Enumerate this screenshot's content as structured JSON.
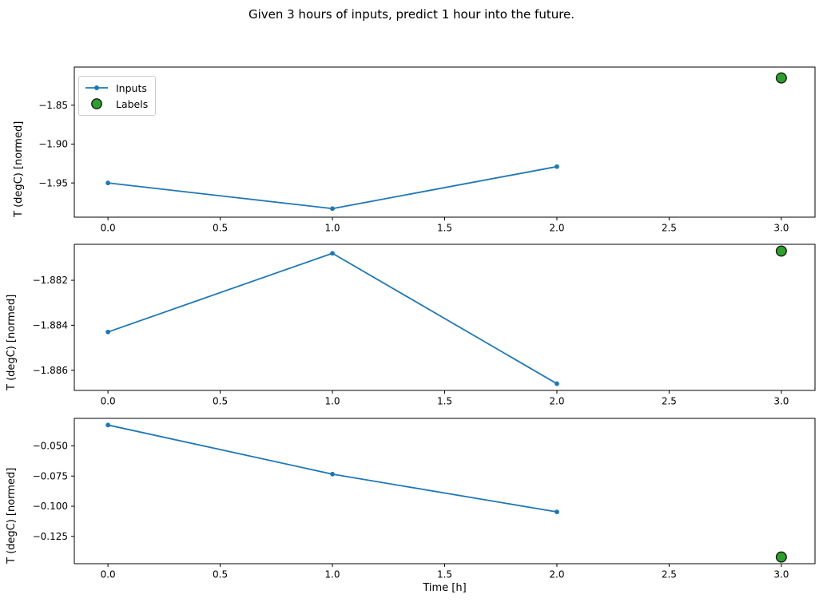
{
  "figure": {
    "title": "Given 3 hours of inputs, predict 1 hour into the future.",
    "xlabel": "Time [h]",
    "legend": {
      "items": [
        {
          "label": "Inputs",
          "marker": "line-with-dot"
        },
        {
          "label": "Labels",
          "marker": "filled-circle"
        }
      ]
    },
    "colors": {
      "line": "#1f77b4",
      "scatter_fill": "#2ca02c",
      "scatter_edge": "#1a1a1a",
      "spine": "#000000"
    }
  },
  "chart_data": [
    {
      "type": "line",
      "ylabel": "T (degC) [normed]",
      "x": [
        0,
        1,
        2
      ],
      "series": [
        {
          "name": "Inputs",
          "values": [
            -1.95,
            -1.983,
            -1.929
          ]
        }
      ],
      "label_point": {
        "name": "Labels",
        "x": 3,
        "y": -1.815
      },
      "xlim": [
        -0.15,
        3.15
      ],
      "ylim": [
        -1.994,
        -1.801
      ],
      "xticks": [
        0.0,
        0.5,
        1.0,
        1.5,
        2.0,
        2.5,
        3.0
      ],
      "xtick_labels": [
        "0.0",
        "0.5",
        "1.0",
        "1.5",
        "2.0",
        "2.5",
        "3.0"
      ],
      "yticks": [
        -1.85,
        -1.9,
        -1.95
      ],
      "ytick_labels": [
        "−1.85",
        "−1.90",
        "−1.95"
      ],
      "grid": false,
      "legend_position": "upper-left"
    },
    {
      "type": "line",
      "ylabel": "T (degC) [normed]",
      "x": [
        0,
        1,
        2
      ],
      "series": [
        {
          "name": "Inputs",
          "values": [
            -1.8843,
            -1.8808,
            -1.8866
          ]
        }
      ],
      "label_point": {
        "name": "Labels",
        "x": 3,
        "y": -1.8807
      },
      "xlim": [
        -0.15,
        3.15
      ],
      "ylim": [
        -1.8869,
        -1.8804
      ],
      "xticks": [
        0.0,
        0.5,
        1.0,
        1.5,
        2.0,
        2.5,
        3.0
      ],
      "xtick_labels": [
        "0.0",
        "0.5",
        "1.0",
        "1.5",
        "2.0",
        "2.5",
        "3.0"
      ],
      "yticks": [
        -1.882,
        -1.884,
        -1.886
      ],
      "ytick_labels": [
        "−1.882",
        "−1.884",
        "−1.886"
      ],
      "grid": false
    },
    {
      "type": "line",
      "ylabel": "T (degC) [normed]",
      "x": [
        0,
        1,
        2
      ],
      "series": [
        {
          "name": "Inputs",
          "values": [
            -0.0327,
            -0.0734,
            -0.1047
          ]
        }
      ],
      "label_point": {
        "name": "Labels",
        "x": 3,
        "y": -0.1421
      },
      "xlim": [
        -0.15,
        3.15
      ],
      "ylim": [
        -0.1476,
        -0.0272
      ],
      "xticks": [
        0.0,
        0.5,
        1.0,
        1.5,
        2.0,
        2.5,
        3.0
      ],
      "xtick_labels": [
        "0.0",
        "0.5",
        "1.0",
        "1.5",
        "2.0",
        "2.5",
        "3.0"
      ],
      "yticks": [
        -0.05,
        -0.075,
        -0.1,
        -0.125
      ],
      "ytick_labels": [
        "−0.050",
        "−0.075",
        "−0.100",
        "−0.125"
      ],
      "grid": false
    }
  ]
}
